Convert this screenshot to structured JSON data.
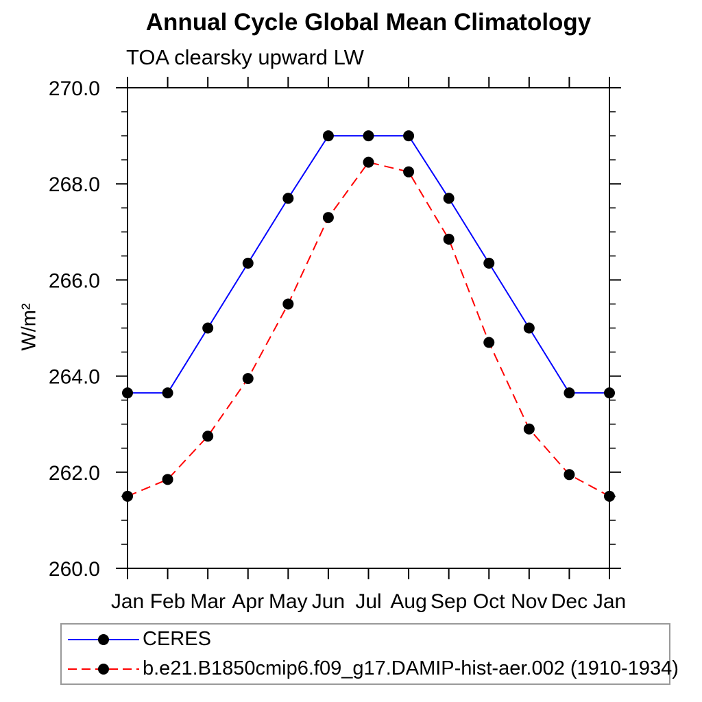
{
  "title": "Annual Cycle Global Mean Climatology",
  "subtitle": "TOA clearsky upward LW",
  "ylabel": "W/m²",
  "colors": {
    "axis": "#000000",
    "ceres_line": "#0000ff",
    "model_line": "#ff0000",
    "marker": "#000000",
    "legend_border": "#999999"
  },
  "chart_data": {
    "type": "line",
    "title": "Annual Cycle Global Mean Climatology",
    "subtitle": "TOA clearsky upward LW",
    "ylabel": "W/m²",
    "categories": [
      "Jan",
      "Feb",
      "Mar",
      "Apr",
      "May",
      "Jun",
      "Jul",
      "Aug",
      "Sep",
      "Oct",
      "Nov",
      "Dec",
      "Jan"
    ],
    "series": [
      {
        "name": "CERES",
        "color": "#0000ff",
        "line_style": "solid",
        "marker": "filled-circle",
        "marker_color": "#000000",
        "values": [
          263.65,
          263.65,
          265.0,
          266.35,
          267.7,
          269.0,
          269.0,
          269.0,
          267.7,
          266.35,
          265.0,
          263.65,
          263.65
        ]
      },
      {
        "name": "b.e21.B1850cmip6.f09_g17.DAMIP-hist-aer.002 (1910-1934)",
        "color": "#ff0000",
        "line_style": "dashed",
        "marker": "filled-circle",
        "marker_color": "#000000",
        "values": [
          261.5,
          261.85,
          262.75,
          263.95,
          265.5,
          267.3,
          268.45,
          268.25,
          266.85,
          264.7,
          262.9,
          261.95,
          261.5
        ]
      }
    ],
    "ylim": [
      260.0,
      270.0
    ],
    "yticks_major": [
      260.0,
      262.0,
      264.0,
      266.0,
      268.0,
      270.0
    ],
    "ytick_labels": [
      "260.0",
      "262.0",
      "264.0",
      "266.0",
      "268.0",
      "270.0"
    ],
    "yticks_minor_step": 0.5,
    "grid": false,
    "legend_position": "bottom-left"
  }
}
